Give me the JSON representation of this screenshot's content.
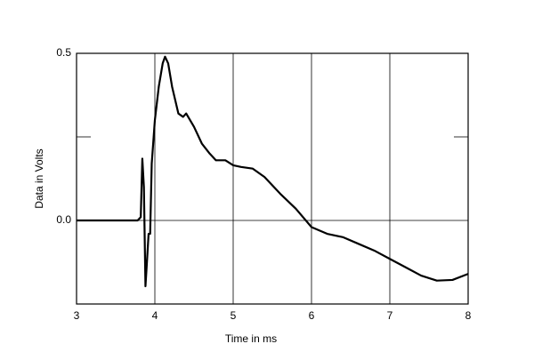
{
  "chart_data": {
    "type": "line",
    "x_label": "Time in ms",
    "y_label": "Data in Volts",
    "x": [
      3,
      3.78,
      3.82,
      3.84,
      3.86,
      3.88,
      3.9,
      3.92,
      3.94,
      3.96,
      4.0,
      4.05,
      4.1,
      4.13,
      4.17,
      4.22,
      4.3,
      4.36,
      4.4,
      4.5,
      4.6,
      4.7,
      4.78,
      4.9,
      5.0,
      5.1,
      5.25,
      5.4,
      5.6,
      5.8,
      6.0,
      6.2,
      6.4,
      6.6,
      6.8,
      7.0,
      7.2,
      7.4,
      7.6,
      7.8,
      8.0
    ],
    "values": [
      0,
      0,
      0.01,
      0.185,
      0.1,
      -0.197,
      -0.12,
      -0.04,
      -0.04,
      0.17,
      0.3,
      0.4,
      0.47,
      0.49,
      0.47,
      0.4,
      0.32,
      0.31,
      0.32,
      0.28,
      0.23,
      0.2,
      0.18,
      0.18,
      0.165,
      0.16,
      0.155,
      0.13,
      0.08,
      0.035,
      -0.02,
      -0.04,
      -0.05,
      -0.07,
      -0.09,
      -0.115,
      -0.14,
      -0.165,
      -0.18,
      -0.178,
      -0.16
    ],
    "color": "#000000",
    "xlim": [
      3,
      8
    ],
    "xticks": [
      3,
      4,
      5,
      6,
      7,
      8
    ],
    "ylim": [
      -0.25,
      0.5
    ],
    "yticks": [
      {
        "value": 0,
        "label": "0.0"
      },
      {
        "value": 0.5,
        "label": "0.5"
      }
    ],
    "y_minor_ticks": [
      0.25
    ],
    "grid": true
  }
}
